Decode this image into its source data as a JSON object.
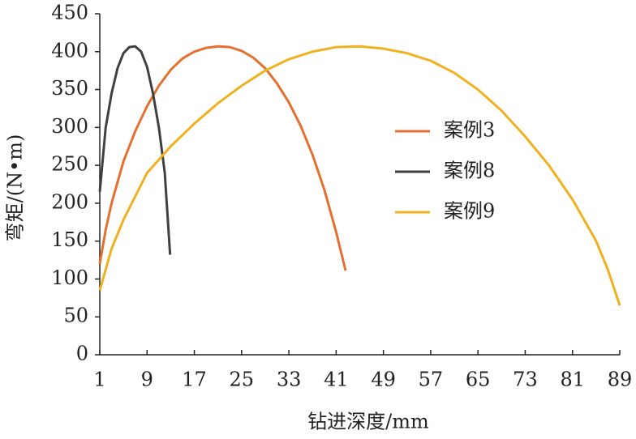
{
  "chart_data": {
    "type": "line",
    "x_label": "钻进深度/mm",
    "y_label": "弯矩/(N•m)",
    "xlim": [
      1,
      89
    ],
    "xticks": [
      1,
      9,
      17,
      25,
      33,
      41,
      49,
      57,
      65,
      73,
      81,
      89
    ],
    "ylim": [
      0,
      450
    ],
    "yticks": [
      0,
      50,
      100,
      150,
      200,
      250,
      300,
      350,
      400,
      450
    ],
    "grid": false,
    "legend": "right",
    "series": [
      {
        "name": "案例3",
        "color": "#e4702f",
        "x": [
          1,
          2,
          3,
          5,
          7,
          9,
          11,
          13,
          15,
          17,
          19,
          21,
          23,
          25,
          27,
          29,
          31,
          33,
          35,
          37,
          39,
          41,
          42.6
        ],
        "values": [
          120,
          165,
          200,
          255,
          295,
          328,
          355,
          376,
          391,
          400,
          405,
          407,
          406,
          401,
          392,
          378,
          358,
          333,
          302,
          264,
          218,
          162,
          111
        ]
      },
      {
        "name": "案例8",
        "color": "#404040",
        "x": [
          1,
          2,
          3,
          4,
          5,
          6,
          7,
          8,
          9,
          10,
          11,
          12,
          12.9
        ],
        "values": [
          215,
          300,
          345,
          378,
          398,
          406,
          407,
          400,
          380,
          345,
          300,
          240,
          132
        ]
      },
      {
        "name": "案例9",
        "color": "#efb120",
        "x": [
          1,
          3,
          5,
          9,
          13,
          17,
          21,
          25,
          29,
          33,
          37,
          41,
          45,
          49,
          53,
          57,
          61,
          65,
          69,
          73,
          77,
          81,
          85,
          87,
          89
        ],
        "values": [
          85,
          140,
          178,
          240,
          275,
          305,
          332,
          355,
          375,
          390,
          400,
          406,
          407,
          404,
          398,
          388,
          372,
          350,
          322,
          288,
          250,
          205,
          150,
          112,
          65
        ]
      }
    ]
  }
}
